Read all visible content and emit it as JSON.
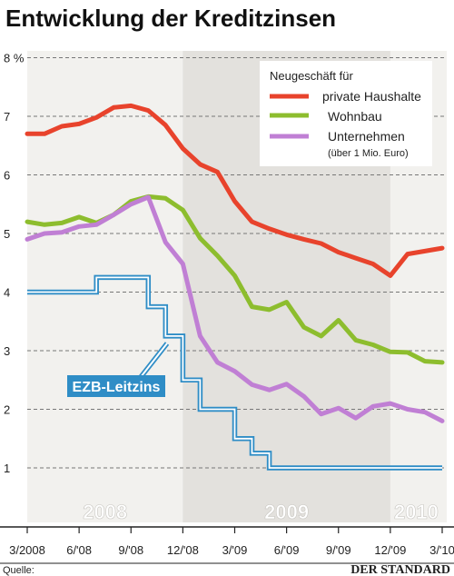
{
  "chart_data": {
    "type": "line",
    "title": "Entwicklung der Kreditzinsen",
    "y_unit": "%",
    "ylim": [
      1,
      8
    ],
    "y_ticks": [
      1,
      2,
      3,
      4,
      5,
      6,
      7,
      8
    ],
    "y_tick_labels": [
      "1",
      "2",
      "3",
      "4",
      "5",
      "6",
      "7",
      "8 %"
    ],
    "x_ticks": [
      "2008-03",
      "2008-06",
      "2008-09",
      "2008-12",
      "2009-03",
      "2009-06",
      "2009-09",
      "2009-12",
      "2010-03"
    ],
    "x_tick_labels": [
      "3/2008",
      "6/'08",
      "9/'08",
      "12/'08",
      "3/'09",
      "6/'09",
      "9/'09",
      "12/'09",
      "3/'10"
    ],
    "x_range": [
      "2008-03",
      "2010-03"
    ],
    "years": [
      {
        "label": "2008",
        "from": "2008-03",
        "to": "2008-12"
      },
      {
        "label": "2009",
        "from": "2008-12",
        "to": "2009-12"
      },
      {
        "label": "2010",
        "from": "2009-12",
        "to": "2010-03"
      }
    ],
    "grid": "horizontal dashed",
    "legend_title": "Neugeschäft für",
    "legend_placement": "top-right",
    "series": [
      {
        "name": "private Haushalte",
        "color": "#e8432c",
        "x": [
          "2008-03",
          "2008-04",
          "2008-05",
          "2008-06",
          "2008-07",
          "2008-08",
          "2008-09",
          "2008-10",
          "2008-11",
          "2008-12",
          "2009-01",
          "2009-02",
          "2009-03",
          "2009-04",
          "2009-05",
          "2009-06",
          "2009-07",
          "2009-08",
          "2009-09",
          "2009-10",
          "2009-11",
          "2009-12",
          "2010-01",
          "2010-02",
          "2010-03"
        ],
        "values": [
          6.7,
          6.7,
          6.83,
          6.87,
          6.98,
          7.15,
          7.18,
          7.1,
          6.85,
          6.45,
          6.18,
          6.05,
          5.55,
          5.2,
          5.08,
          4.98,
          4.9,
          4.83,
          4.68,
          4.58,
          4.48,
          4.28,
          4.65,
          4.7,
          4.75
        ]
      },
      {
        "name": "Wohnbau",
        "color": "#8dbd2e",
        "x": [
          "2008-03",
          "2008-04",
          "2008-05",
          "2008-06",
          "2008-07",
          "2008-08",
          "2008-09",
          "2008-10",
          "2008-11",
          "2008-12",
          "2009-01",
          "2009-02",
          "2009-03",
          "2009-04",
          "2009-05",
          "2009-06",
          "2009-07",
          "2009-08",
          "2009-09",
          "2009-10",
          "2009-11",
          "2009-12",
          "2010-01",
          "2010-02",
          "2010-03"
        ],
        "values": [
          5.2,
          5.15,
          5.18,
          5.28,
          5.18,
          5.32,
          5.55,
          5.63,
          5.6,
          5.4,
          4.92,
          4.62,
          4.28,
          3.75,
          3.7,
          3.83,
          3.4,
          3.25,
          3.52,
          3.18,
          3.1,
          2.98,
          2.97,
          2.82,
          2.8
        ]
      },
      {
        "name": "Unternehmen",
        "sublabel": "(über 1 Mio. Euro)",
        "color": "#c07fd4",
        "x": [
          "2008-03",
          "2008-04",
          "2008-05",
          "2008-06",
          "2008-07",
          "2008-08",
          "2008-09",
          "2008-10",
          "2008-11",
          "2008-12",
          "2009-01",
          "2009-02",
          "2009-03",
          "2009-04",
          "2009-05",
          "2009-06",
          "2009-07",
          "2009-08",
          "2009-09",
          "2009-10",
          "2009-11",
          "2009-12",
          "2010-01",
          "2010-02",
          "2010-03"
        ],
        "values": [
          4.9,
          5.0,
          5.02,
          5.12,
          5.15,
          5.32,
          5.5,
          5.62,
          4.85,
          4.48,
          3.25,
          2.8,
          2.65,
          2.42,
          2.33,
          2.43,
          2.22,
          1.92,
          2.02,
          1.85,
          2.05,
          2.1,
          2.0,
          1.95,
          1.8
        ]
      }
    ],
    "step_series": {
      "name": "EZB-Leitzins",
      "color": "#2f8dc6",
      "x": [
        "2008-03",
        "2008-07",
        "2008-10",
        "2008-11",
        "2008-12",
        "2009-01",
        "2009-02",
        "2009-03",
        "2009-04",
        "2009-05",
        "2010-03"
      ],
      "values": [
        4.0,
        4.25,
        3.75,
        3.25,
        2.5,
        2.0,
        2.0,
        1.5,
        1.25,
        1.0,
        1.0
      ]
    }
  },
  "footer": {
    "source_label": "Quelle:",
    "brand": "DER STANDARD"
  }
}
